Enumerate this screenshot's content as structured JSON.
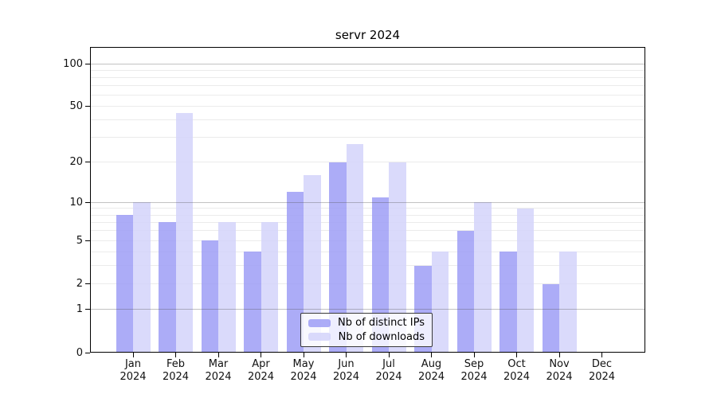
{
  "title": "servr 2024",
  "chart_data": {
    "type": "bar",
    "title": "servr 2024",
    "categories": [
      "Jan 2024",
      "Feb 2024",
      "Mar 2024",
      "Apr 2024",
      "May 2024",
      "Jun 2024",
      "Jul 2024",
      "Aug 2024",
      "Sep 2024",
      "Oct 2024",
      "Nov 2024",
      "Dec 2024"
    ],
    "series": [
      {
        "name": "Nb of distinct IPs",
        "color": "#9a9af5",
        "values": [
          8,
          7,
          5,
          4,
          12,
          20,
          11,
          3,
          6,
          4,
          2,
          0
        ]
      },
      {
        "name": "Nb of downloads",
        "color": "#d2d2fa",
        "values": [
          10,
          45,
          7,
          7,
          16,
          27,
          20,
          4,
          10,
          9,
          4,
          0
        ]
      }
    ],
    "xlabel": "",
    "ylabel": "",
    "yscale": "log1p",
    "ylim": [
      0,
      131
    ],
    "y_tick_values": [
      100,
      50,
      20,
      10,
      5,
      2,
      1,
      0
    ],
    "grid": true,
    "grid_minor_values": [
      2,
      3,
      4,
      5,
      6,
      7,
      8,
      9,
      20,
      30,
      40,
      50,
      60,
      70,
      80,
      90
    ],
    "grid_major_values": [
      1,
      10,
      100
    ],
    "legend_position": "bottom-center"
  }
}
